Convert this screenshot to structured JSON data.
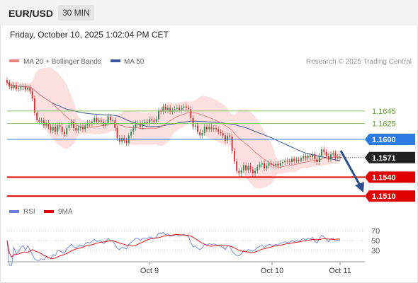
{
  "header": {
    "symbol": "EUR/USD",
    "timeframe": "30 MIN"
  },
  "datetime": "Friday, October 10, 2025 1:02:04 PM CET",
  "legend": {
    "ma20": "MA 20 + Bollinger Bands",
    "ma50": "MA 50",
    "rsi": "RSI",
    "rsi_ma": "9MA"
  },
  "credit": "Research © 2025 Trading Central",
  "colors": {
    "ma20": "#f08080",
    "ma50": "#3b5998",
    "bands": "#fbd5d5",
    "candle_up": "#2e8b57",
    "candle_down": "#d32f2f",
    "level_green": "#8dc06a",
    "level_blue": "#2a7ae2",
    "level_red": "#e00000",
    "rsi": "#6a7fdc",
    "rsi_ma": "#e00000",
    "arrow": "#2b4e8c"
  },
  "chart_data": [
    {
      "type": "candlestick",
      "x_ticks": [
        "Oct 9",
        "Oct 10",
        "Oct 11"
      ],
      "y_range": [
        1.149,
        1.172
      ],
      "levels": [
        {
          "value": 1.1645,
          "label": "1.1645",
          "role": "green"
        },
        {
          "value": 1.1625,
          "label": "1.1625",
          "role": "green"
        },
        {
          "value": 1.16,
          "label": "1.1600",
          "role": "blue"
        },
        {
          "value": 1.1571,
          "label": "1.1571",
          "role": "current"
        },
        {
          "value": 1.154,
          "label": "1.1540",
          "role": "red"
        },
        {
          "value": 1.151,
          "label": "1.1510",
          "role": "red"
        }
      ],
      "close": [
        1.169,
        1.1684,
        1.1682,
        1.1686,
        1.168,
        1.1681,
        1.1683,
        1.1684,
        1.1679,
        1.1682,
        1.1676,
        1.1665,
        1.1642,
        1.163,
        1.1628,
        1.163,
        1.1622,
        1.1626,
        1.162,
        1.1614,
        1.162,
        1.1612,
        1.1622,
        1.162,
        1.1612,
        1.1608,
        1.1618,
        1.1622,
        1.1628,
        1.1618,
        1.1614,
        1.1618,
        1.162,
        1.1616,
        1.1622,
        1.1626,
        1.1624,
        1.1628,
        1.1634,
        1.1628,
        1.163,
        1.1628,
        1.1622,
        1.1626,
        1.1636,
        1.163,
        1.163,
        1.1618,
        1.1602,
        1.1596,
        1.1602,
        1.1598,
        1.1594,
        1.1606,
        1.1612,
        1.1618,
        1.1626,
        1.1626,
        1.162,
        1.1626,
        1.1628,
        1.1626,
        1.1632,
        1.163,
        1.1628,
        1.1632,
        1.1646,
        1.1644,
        1.1652,
        1.1646,
        1.165,
        1.1644,
        1.1646,
        1.1648,
        1.165,
        1.1647,
        1.165,
        1.1652,
        1.165,
        1.1648,
        1.1634,
        1.162,
        1.1622,
        1.1612,
        1.1606,
        1.161,
        1.162,
        1.1616,
        1.162,
        1.1616,
        1.1618,
        1.1616,
        1.1612,
        1.161,
        1.1606,
        1.1598,
        1.1606,
        1.1604,
        1.1582,
        1.1565,
        1.155,
        1.1546,
        1.1551,
        1.1559,
        1.1551,
        1.1558,
        1.1552,
        1.1546,
        1.155,
        1.1556,
        1.156,
        1.1562,
        1.1554,
        1.1558,
        1.1562,
        1.156,
        1.1558,
        1.1561,
        1.1558,
        1.1563,
        1.1564,
        1.1566,
        1.1565,
        1.1564,
        1.1569,
        1.1566,
        1.1568,
        1.1566,
        1.157,
        1.1573,
        1.157,
        1.1574,
        1.1572,
        1.1576,
        1.1568,
        1.1564,
        1.1574,
        1.1584,
        1.158,
        1.1574,
        1.1568,
        1.1576,
        1.1578,
        1.157,
        1.1572,
        1.1571
      ]
    },
    {
      "type": "line",
      "series": [
        {
          "name": "RSI"
        },
        {
          "name": "9MA"
        }
      ],
      "y_ticks": [
        "70",
        "50",
        "30"
      ],
      "y_range": [
        10,
        90
      ]
    }
  ]
}
